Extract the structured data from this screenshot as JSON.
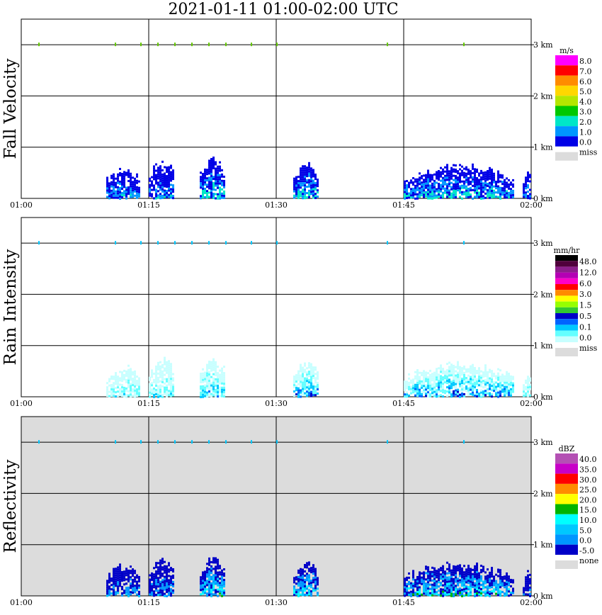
{
  "title": "2021-01-11   01:00-02:00 UTC",
  "x_ticks": [
    "01:00",
    "01:15",
    "01:30",
    "01:45",
    "02:00"
  ],
  "height_ticks": [
    "3 km",
    "2 km",
    "1 km",
    "0 km"
  ],
  "chart_data": [
    {
      "type": "heatmap",
      "ylabel": "Fall Velocity",
      "xlim": [
        "01:00",
        "02:00"
      ],
      "ylim_km": [
        0,
        3.5
      ],
      "legend": {
        "unit": "m/s",
        "labels": [
          "8.0",
          "7.0",
          "6.0",
          "5.0",
          "4.0",
          "3.0",
          "2.0",
          "1.0",
          "0.0"
        ],
        "missing_label": "miss",
        "colors": [
          "#ff00ff",
          "#ff0000",
          "#ff8c00",
          "#ffd700",
          "#b4e600",
          "#00c800",
          "#00e6c8",
          "#0096ff",
          "#0000e6"
        ]
      },
      "echo_regions": [
        {
          "start": "01:10",
          "end": "01:14",
          "top_km": 0.65,
          "level": 1
        },
        {
          "start": "01:15",
          "end": "01:18",
          "top_km": 0.8,
          "level": 1
        },
        {
          "start": "01:21",
          "end": "01:24",
          "top_km": 0.82,
          "level": 2
        },
        {
          "start": "01:32",
          "end": "01:35",
          "top_km": 0.72,
          "level": 2
        },
        {
          "start": "01:45",
          "end": "01:58",
          "top_km": 0.7,
          "level": 2
        },
        {
          "start": "01:59",
          "end": "02:00",
          "top_km": 0.55,
          "level": 1
        }
      ]
    },
    {
      "type": "heatmap",
      "ylabel": "Rain Intensity",
      "xlim": [
        "01:00",
        "02:00"
      ],
      "ylim_km": [
        0,
        3.5
      ],
      "legend": {
        "unit": "mm/hr",
        "labels": [
          "48.0",
          "12.0",
          "6.0",
          "3.0",
          "1.5",
          "0.5",
          "0.1",
          "0.0"
        ],
        "missing_label": "miss",
        "colors": [
          "#000000",
          "#50003c",
          "#8c1e8c",
          "#b400b4",
          "#ff00c8",
          "#ff0000",
          "#ff8c00",
          "#ffff00",
          "#96ff00",
          "#32c832",
          "#0000c8",
          "#0064ff",
          "#00c8ff",
          "#64ffff",
          "#c8ffff"
        ]
      },
      "echo_regions": [
        {
          "start": "01:10",
          "end": "01:14",
          "top_km": 0.65,
          "level": 1
        },
        {
          "start": "01:15",
          "end": "01:18",
          "top_km": 0.8,
          "level": 1
        },
        {
          "start": "01:21",
          "end": "01:24",
          "top_km": 0.82,
          "level": 2
        },
        {
          "start": "01:32",
          "end": "01:35",
          "top_km": 0.72,
          "level": 3
        },
        {
          "start": "01:45",
          "end": "01:58",
          "top_km": 0.7,
          "level": 3
        },
        {
          "start": "01:59",
          "end": "02:00",
          "top_km": 0.55,
          "level": 1
        }
      ]
    },
    {
      "type": "heatmap",
      "ylabel": "Reflectivity",
      "xlim": [
        "01:00",
        "02:00"
      ],
      "ylim_km": [
        0,
        3.5
      ],
      "legend": {
        "unit": "dBZ",
        "labels": [
          "40.0",
          "35.0",
          "30.0",
          "25.0",
          "20.0",
          "15.0",
          "10.0",
          "5.0",
          "0.0",
          "-5.0"
        ],
        "missing_label": "none",
        "colors": [
          "#b450b4",
          "#c800c8",
          "#ff0000",
          "#ff8c00",
          "#ffff00",
          "#00b400",
          "#00ffff",
          "#00c8ff",
          "#0096ff",
          "#0000c8"
        ]
      },
      "echo_regions": [
        {
          "start": "01:10",
          "end": "01:14",
          "top_km": 0.65,
          "level": 1
        },
        {
          "start": "01:15",
          "end": "01:18",
          "top_km": 0.8,
          "level": 1
        },
        {
          "start": "01:21",
          "end": "01:24",
          "top_km": 0.82,
          "level": 3
        },
        {
          "start": "01:32",
          "end": "01:35",
          "top_km": 0.72,
          "level": 3
        },
        {
          "start": "01:45",
          "end": "01:58",
          "top_km": 0.7,
          "level": 3
        },
        {
          "start": "01:59",
          "end": "02:00",
          "top_km": 0.55,
          "level": 1
        }
      ]
    }
  ]
}
